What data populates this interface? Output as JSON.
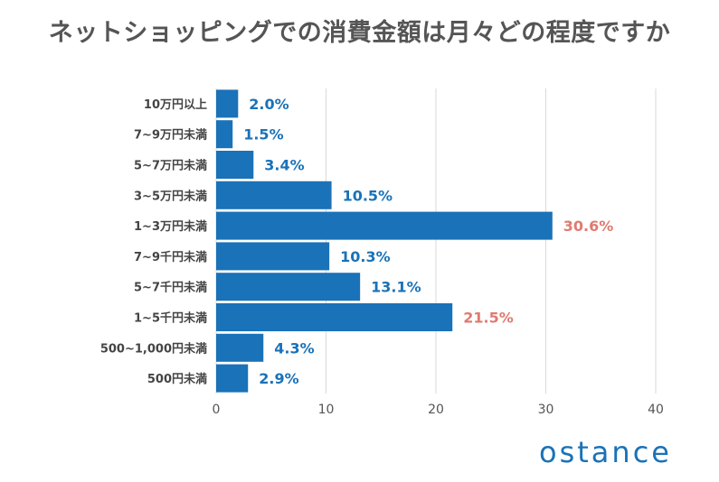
{
  "title": "ネットショッピングでの消費金額は月々どの程度ですか",
  "brand": "ostance",
  "colors": {
    "bar": "#1a72b8",
    "label_default": "#1a72b8",
    "label_highlight": "#e07a70",
    "grid": "#d9d9d9",
    "axis_text": "#555555",
    "category_text": "#444444"
  },
  "chart_data": {
    "type": "bar",
    "orientation": "horizontal",
    "categories": [
      "10万円以上",
      "7~9万円未満",
      "5~7万円未満",
      "3~5万円未満",
      "1~3万円未満",
      "7~9千円未満",
      "5~7千円未満",
      "1~5千円未満",
      "500~1,000円未満",
      "500円未満"
    ],
    "values": [
      2.0,
      1.5,
      3.4,
      10.5,
      30.6,
      10.3,
      13.1,
      21.5,
      4.3,
      2.9
    ],
    "data_labels": [
      "2.0%",
      "1.5%",
      "3.4%",
      "10.5%",
      "30.6%",
      "10.3%",
      "13.1%",
      "21.5%",
      "4.3%",
      "2.9%"
    ],
    "highlighted": [
      "1~3万円未満",
      "1~5千円未満"
    ],
    "xlim": [
      0,
      40
    ],
    "xticks": [
      "0",
      "10",
      "20",
      "30",
      "40"
    ],
    "grid": true,
    "xlabel": "",
    "ylabel": ""
  }
}
